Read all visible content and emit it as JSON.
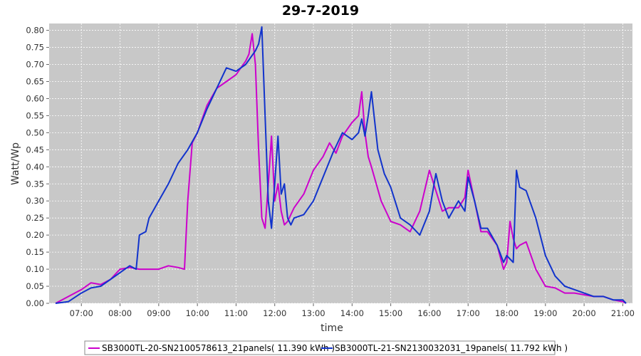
{
  "chart_data": {
    "type": "line",
    "title": "29-7-2019",
    "xlabel": "time",
    "ylabel": "Watt/Wp",
    "xlim": [
      "06:10",
      "21:15"
    ],
    "ylim": [
      0,
      0.82
    ],
    "grid": true,
    "legend_position": "bottom",
    "x_ticks": [
      "07:00",
      "08:00",
      "09:00",
      "10:00",
      "11:00",
      "12:00",
      "13:00",
      "14:00",
      "15:00",
      "16:00",
      "17:00",
      "18:00",
      "19:00",
      "20:00",
      "21:00"
    ],
    "y_ticks": [
      "0.00",
      "0.05",
      "0.10",
      "0.15",
      "0.20",
      "0.25",
      "0.30",
      "0.35",
      "0.40",
      "0.45",
      "0.50",
      "0.55",
      "0.60",
      "0.65",
      "0.70",
      "0.75",
      "0.80"
    ],
    "series": [
      {
        "name": "SB3000TL-20-SN2100578613_21panels( 11.390 kWh )",
        "color": "#cc00cc",
        "x": [
          "06:20",
          "06:40",
          "07:00",
          "07:15",
          "07:30",
          "07:45",
          "08:00",
          "08:15",
          "08:30",
          "08:45",
          "09:00",
          "09:15",
          "09:30",
          "09:40",
          "09:45",
          "09:52",
          "10:00",
          "10:15",
          "10:30",
          "10:45",
          "11:00",
          "11:15",
          "11:20",
          "11:25",
          "11:30",
          "11:35",
          "11:40",
          "11:45",
          "11:50",
          "11:55",
          "12:00",
          "12:05",
          "12:10",
          "12:15",
          "12:20",
          "12:30",
          "12:45",
          "13:00",
          "13:15",
          "13:25",
          "13:35",
          "13:45",
          "14:00",
          "14:10",
          "14:15",
          "14:20",
          "14:25",
          "14:30",
          "14:45",
          "15:00",
          "15:15",
          "15:30",
          "15:45",
          "16:00",
          "16:10",
          "16:20",
          "16:30",
          "16:45",
          "16:55",
          "17:00",
          "17:10",
          "17:20",
          "17:30",
          "17:45",
          "17:55",
          "18:00",
          "18:05",
          "18:10",
          "18:15",
          "18:20",
          "18:30",
          "18:45",
          "19:00",
          "19:15",
          "19:30",
          "19:45",
          "20:00",
          "20:15",
          "20:30",
          "20:45",
          "21:00",
          "21:05"
        ],
        "y": [
          0.0,
          0.02,
          0.04,
          0.06,
          0.055,
          0.07,
          0.1,
          0.105,
          0.1,
          0.1,
          0.1,
          0.11,
          0.105,
          0.1,
          0.3,
          0.47,
          0.5,
          0.58,
          0.63,
          0.65,
          0.67,
          0.71,
          0.73,
          0.79,
          0.7,
          0.45,
          0.25,
          0.22,
          0.35,
          0.49,
          0.3,
          0.35,
          0.27,
          0.23,
          0.24,
          0.28,
          0.32,
          0.39,
          0.43,
          0.47,
          0.44,
          0.49,
          0.53,
          0.55,
          0.62,
          0.5,
          0.43,
          0.4,
          0.3,
          0.24,
          0.23,
          0.21,
          0.27,
          0.39,
          0.33,
          0.27,
          0.28,
          0.28,
          0.31,
          0.39,
          0.3,
          0.21,
          0.21,
          0.17,
          0.1,
          0.12,
          0.24,
          0.19,
          0.16,
          0.17,
          0.18,
          0.1,
          0.05,
          0.045,
          0.03,
          0.03,
          0.025,
          0.02,
          0.02,
          0.01,
          0.005,
          0.0
        ]
      },
      {
        "name": "SB3000TL-21-SN2130032031_19panels( 11.792 kWh )",
        "color": "#1133cc",
        "x": [
          "06:20",
          "06:40",
          "07:00",
          "07:15",
          "07:30",
          "07:45",
          "08:00",
          "08:15",
          "08:25",
          "08:30",
          "08:40",
          "08:45",
          "09:00",
          "09:15",
          "09:30",
          "09:45",
          "10:00",
          "10:15",
          "10:30",
          "10:45",
          "11:00",
          "11:15",
          "11:30",
          "11:35",
          "11:40",
          "11:45",
          "11:50",
          "11:55",
          "12:00",
          "12:05",
          "12:10",
          "12:15",
          "12:20",
          "12:25",
          "12:30",
          "12:45",
          "13:00",
          "13:15",
          "13:30",
          "13:45",
          "14:00",
          "14:10",
          "14:15",
          "14:20",
          "14:25",
          "14:30",
          "14:40",
          "14:50",
          "15:00",
          "15:15",
          "15:30",
          "15:45",
          "16:00",
          "16:10",
          "16:20",
          "16:30",
          "16:45",
          "16:55",
          "17:00",
          "17:10",
          "17:20",
          "17:30",
          "17:45",
          "17:55",
          "18:00",
          "18:10",
          "18:15",
          "18:20",
          "18:30",
          "18:45",
          "19:00",
          "19:15",
          "19:30",
          "19:45",
          "20:00",
          "20:15",
          "20:30",
          "20:45",
          "21:00",
          "21:05"
        ],
        "y": [
          0.0,
          0.005,
          0.03,
          0.045,
          0.05,
          0.07,
          0.09,
          0.11,
          0.1,
          0.2,
          0.21,
          0.25,
          0.3,
          0.35,
          0.41,
          0.45,
          0.5,
          0.57,
          0.63,
          0.69,
          0.68,
          0.7,
          0.74,
          0.76,
          0.81,
          0.55,
          0.3,
          0.22,
          0.35,
          0.49,
          0.32,
          0.35,
          0.25,
          0.23,
          0.25,
          0.26,
          0.3,
          0.37,
          0.44,
          0.5,
          0.48,
          0.5,
          0.54,
          0.49,
          0.55,
          0.62,
          0.45,
          0.38,
          0.34,
          0.25,
          0.23,
          0.2,
          0.27,
          0.38,
          0.3,
          0.25,
          0.3,
          0.27,
          0.37,
          0.3,
          0.22,
          0.22,
          0.17,
          0.12,
          0.14,
          0.12,
          0.39,
          0.34,
          0.33,
          0.25,
          0.14,
          0.08,
          0.05,
          0.04,
          0.03,
          0.02,
          0.02,
          0.01,
          0.01,
          0.0
        ]
      }
    ]
  }
}
